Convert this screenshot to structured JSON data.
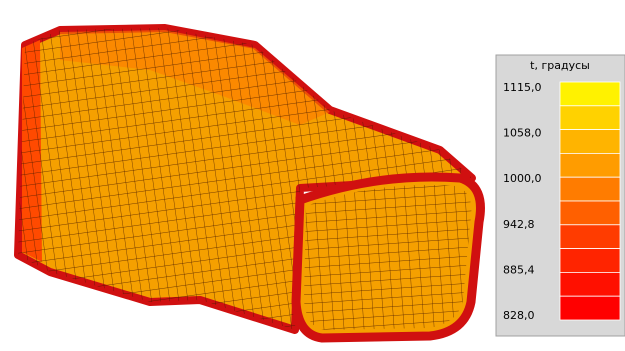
{
  "legend": {
    "title": "t, градусы",
    "labels": [
      "1115,0",
      "1058,0",
      "1000,0",
      "942,8",
      "885,4",
      "828,0"
    ],
    "colors": [
      "#fff200",
      "#ffd200",
      "#ffb400",
      "#ff9c00",
      "#ff7c00",
      "#ff6000",
      "#ff3c00",
      "#ff2400",
      "#ff1000",
      "#ff0000"
    ]
  }
}
